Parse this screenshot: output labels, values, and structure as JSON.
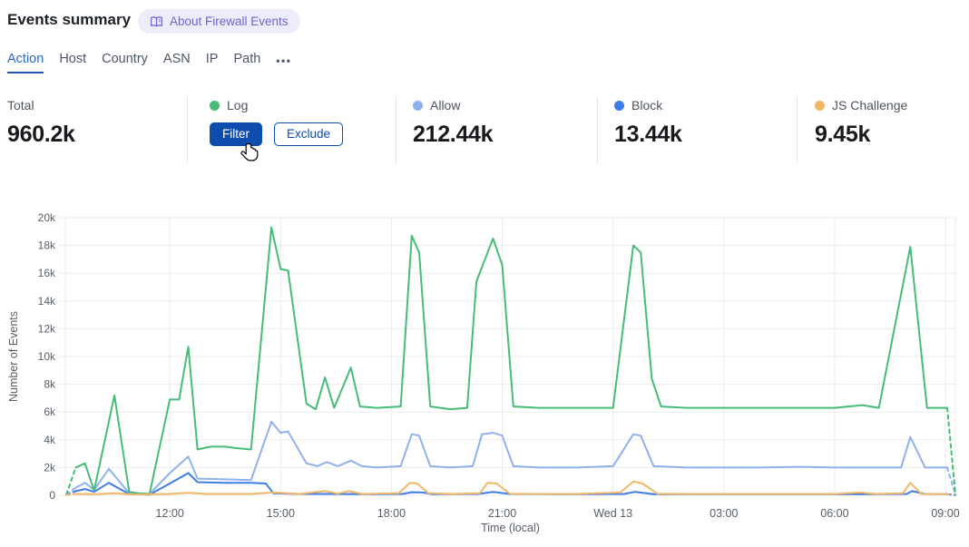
{
  "header": {
    "title": "Events summary",
    "badge_label": "About Firewall Events",
    "badge_icon": "open-book-icon"
  },
  "tabs": {
    "items": [
      {
        "label": "Action",
        "active": true
      },
      {
        "label": "Host",
        "active": false
      },
      {
        "label": "Country",
        "active": false
      },
      {
        "label": "ASN",
        "active": false
      },
      {
        "label": "IP",
        "active": false
      },
      {
        "label": "Path",
        "active": false
      }
    ],
    "more_label": "•••"
  },
  "stats": {
    "total": {
      "label": "Total",
      "value": "960.2k"
    },
    "cards": [
      {
        "label": "Log",
        "color": "#45bc77",
        "buttons": [
          "Filter",
          "Exclude"
        ]
      },
      {
        "label": "Allow",
        "color": "#8fb1f0",
        "value": "212.44k"
      },
      {
        "label": "Block",
        "color": "#3d7de9",
        "value": "13.44k"
      },
      {
        "label": "JS Challenge",
        "color": "#efb766",
        "value": "9.45k"
      }
    ]
  },
  "chart_data": {
    "type": "line",
    "xlabel": "Time (local)",
    "ylabel": "Number of Events",
    "value_unit": "thousands of events (k)",
    "x_domain_hours": [
      9.17,
      33.27
    ],
    "x_ticks": [
      {
        "t": 12,
        "label": "12:00"
      },
      {
        "t": 15,
        "label": "15:00"
      },
      {
        "t": 18,
        "label": "18:00"
      },
      {
        "t": 21,
        "label": "21:00"
      },
      {
        "t": 24,
        "label": "Wed 13"
      },
      {
        "t": 27,
        "label": "03:00"
      },
      {
        "t": 30,
        "label": "06:00"
      },
      {
        "t": 33,
        "label": "09:00"
      }
    ],
    "y_axis": {
      "max_k": 20,
      "step_k": 2,
      "ticks": [
        "0",
        "2k",
        "4k",
        "6k",
        "8k",
        "10k",
        "12k",
        "14k",
        "16k",
        "18k",
        "20k"
      ]
    },
    "grid": true,
    "legend_position": "in stats row above chart",
    "series": [
      {
        "name": "Log",
        "color": "#45bc77",
        "lead": [
          [
            9.2,
            0.05
          ],
          [
            9.45,
            2.0
          ]
        ],
        "points": [
          [
            9.45,
            2.0
          ],
          [
            9.7,
            2.3
          ],
          [
            9.95,
            0.35
          ],
          [
            10.5,
            7.2
          ],
          [
            10.9,
            0.25
          ],
          [
            11.15,
            0.15
          ],
          [
            11.45,
            0.1
          ],
          [
            12.0,
            6.9
          ],
          [
            12.25,
            6.9
          ],
          [
            12.5,
            10.7
          ],
          [
            12.75,
            3.3
          ],
          [
            13.1,
            3.5
          ],
          [
            13.5,
            3.5
          ],
          [
            13.8,
            3.4
          ],
          [
            14.2,
            3.3
          ],
          [
            14.75,
            19.3
          ],
          [
            15.0,
            16.3
          ],
          [
            15.2,
            16.2
          ],
          [
            15.7,
            6.6
          ],
          [
            15.95,
            6.2
          ],
          [
            16.2,
            8.5
          ],
          [
            16.45,
            6.3
          ],
          [
            16.9,
            9.2
          ],
          [
            17.15,
            6.4
          ],
          [
            17.6,
            6.3
          ],
          [
            18.25,
            6.4
          ],
          [
            18.55,
            18.7
          ],
          [
            18.75,
            17.5
          ],
          [
            19.05,
            6.4
          ],
          [
            19.6,
            6.2
          ],
          [
            20.05,
            6.3
          ],
          [
            20.3,
            15.4
          ],
          [
            20.75,
            18.5
          ],
          [
            21.0,
            16.6
          ],
          [
            21.3,
            6.4
          ],
          [
            22.0,
            6.3
          ],
          [
            23.0,
            6.3
          ],
          [
            24.0,
            6.3
          ],
          [
            24.55,
            18.0
          ],
          [
            24.75,
            17.5
          ],
          [
            25.05,
            8.4
          ],
          [
            25.3,
            6.4
          ],
          [
            26.0,
            6.3
          ],
          [
            27.0,
            6.3
          ],
          [
            28.0,
            6.3
          ],
          [
            29.0,
            6.3
          ],
          [
            30.0,
            6.3
          ],
          [
            30.75,
            6.5
          ],
          [
            31.2,
            6.3
          ],
          [
            32.05,
            17.9
          ],
          [
            32.5,
            6.3
          ],
          [
            33.05,
            6.3
          ]
        ],
        "tail": [
          [
            33.05,
            6.3
          ],
          [
            33.27,
            0.05
          ]
        ]
      },
      {
        "name": "Allow",
        "color": "#8fb1f0",
        "lead": [
          [
            9.2,
            0.05
          ],
          [
            9.45,
            0.55
          ]
        ],
        "points": [
          [
            9.45,
            0.55
          ],
          [
            9.7,
            0.9
          ],
          [
            9.95,
            0.4
          ],
          [
            10.35,
            1.9
          ],
          [
            10.9,
            0.15
          ],
          [
            11.45,
            0.1
          ],
          [
            12.0,
            1.6
          ],
          [
            12.5,
            2.8
          ],
          [
            12.75,
            1.2
          ],
          [
            13.5,
            1.15
          ],
          [
            14.2,
            1.1
          ],
          [
            14.75,
            5.3
          ],
          [
            15.0,
            4.5
          ],
          [
            15.2,
            4.6
          ],
          [
            15.7,
            2.3
          ],
          [
            16.0,
            2.1
          ],
          [
            16.25,
            2.4
          ],
          [
            16.55,
            2.1
          ],
          [
            16.9,
            2.5
          ],
          [
            17.2,
            2.1
          ],
          [
            17.6,
            2.0
          ],
          [
            18.25,
            2.1
          ],
          [
            18.55,
            4.4
          ],
          [
            18.75,
            4.3
          ],
          [
            19.05,
            2.1
          ],
          [
            19.6,
            2.0
          ],
          [
            20.2,
            2.1
          ],
          [
            20.45,
            4.4
          ],
          [
            20.75,
            4.5
          ],
          [
            21.0,
            4.3
          ],
          [
            21.3,
            2.1
          ],
          [
            22.0,
            2.0
          ],
          [
            23.0,
            2.0
          ],
          [
            24.0,
            2.1
          ],
          [
            24.55,
            4.4
          ],
          [
            24.75,
            4.3
          ],
          [
            25.1,
            2.1
          ],
          [
            26.0,
            2.0
          ],
          [
            27.0,
            2.0
          ],
          [
            28.0,
            2.0
          ],
          [
            29.0,
            2.05
          ],
          [
            30.0,
            2.0
          ],
          [
            31.0,
            2.0
          ],
          [
            31.8,
            2.0
          ],
          [
            32.05,
            4.2
          ],
          [
            32.45,
            2.0
          ],
          [
            33.05,
            2.0
          ]
        ],
        "tail": [
          [
            33.05,
            2.0
          ],
          [
            33.27,
            0.05
          ]
        ]
      },
      {
        "name": "Block",
        "color": "#3d7de9",
        "lead": [
          [
            9.2,
            0.03
          ],
          [
            9.45,
            0.3
          ]
        ],
        "points": [
          [
            9.45,
            0.3
          ],
          [
            9.7,
            0.45
          ],
          [
            9.95,
            0.25
          ],
          [
            10.35,
            0.9
          ],
          [
            10.9,
            0.08
          ],
          [
            11.45,
            0.05
          ],
          [
            12.0,
            0.85
          ],
          [
            12.5,
            1.6
          ],
          [
            12.75,
            0.95
          ],
          [
            13.5,
            0.9
          ],
          [
            14.2,
            0.9
          ],
          [
            14.6,
            0.85
          ],
          [
            14.8,
            0.15
          ],
          [
            15.5,
            0.1
          ],
          [
            16.3,
            0.1
          ],
          [
            17.6,
            0.08
          ],
          [
            18.3,
            0.1
          ],
          [
            18.55,
            0.22
          ],
          [
            18.85,
            0.2
          ],
          [
            19.1,
            0.08
          ],
          [
            20.35,
            0.1
          ],
          [
            20.75,
            0.25
          ],
          [
            21.2,
            0.1
          ],
          [
            22.5,
            0.08
          ],
          [
            24.3,
            0.1
          ],
          [
            24.6,
            0.25
          ],
          [
            25.1,
            0.08
          ],
          [
            27.0,
            0.08
          ],
          [
            29.0,
            0.08
          ],
          [
            31.0,
            0.08
          ],
          [
            31.95,
            0.1
          ],
          [
            32.1,
            0.3
          ],
          [
            32.45,
            0.1
          ],
          [
            33.05,
            0.08
          ]
        ],
        "tail": [
          [
            33.05,
            0.08
          ],
          [
            33.27,
            0.02
          ]
        ]
      },
      {
        "name": "JS Challenge",
        "color": "#efb766",
        "lead": [
          [
            9.2,
            0.02
          ],
          [
            9.45,
            0.1
          ]
        ],
        "points": [
          [
            9.45,
            0.1
          ],
          [
            10.0,
            0.08
          ],
          [
            10.5,
            0.15
          ],
          [
            11.0,
            0.06
          ],
          [
            12.0,
            0.1
          ],
          [
            12.5,
            0.18
          ],
          [
            13.0,
            0.1
          ],
          [
            14.2,
            0.1
          ],
          [
            14.8,
            0.2
          ],
          [
            15.5,
            0.1
          ],
          [
            16.2,
            0.3
          ],
          [
            16.55,
            0.12
          ],
          [
            16.85,
            0.3
          ],
          [
            17.2,
            0.1
          ],
          [
            18.2,
            0.15
          ],
          [
            18.5,
            0.9
          ],
          [
            18.7,
            0.85
          ],
          [
            19.0,
            0.15
          ],
          [
            19.6,
            0.1
          ],
          [
            20.4,
            0.15
          ],
          [
            20.6,
            0.9
          ],
          [
            20.85,
            0.85
          ],
          [
            21.2,
            0.12
          ],
          [
            22.0,
            0.1
          ],
          [
            23.0,
            0.1
          ],
          [
            24.2,
            0.2
          ],
          [
            24.55,
            1.0
          ],
          [
            24.8,
            0.85
          ],
          [
            25.2,
            0.12
          ],
          [
            26.0,
            0.1
          ],
          [
            27.0,
            0.1
          ],
          [
            28.0,
            0.1
          ],
          [
            29.0,
            0.1
          ],
          [
            30.0,
            0.1
          ],
          [
            30.7,
            0.2
          ],
          [
            31.1,
            0.1
          ],
          [
            31.85,
            0.15
          ],
          [
            32.05,
            0.9
          ],
          [
            32.35,
            0.1
          ],
          [
            33.1,
            0.08
          ]
        ],
        "tail": []
      }
    ]
  }
}
